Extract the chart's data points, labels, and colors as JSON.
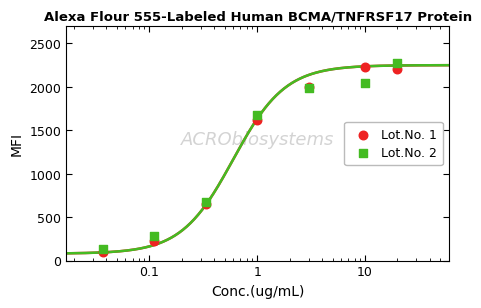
{
  "title": "Alexa Flour 555-Labeled Human BCMA/TNFRSF17 Protein",
  "xlabel": "Conc.(ug/mL)",
  "ylabel": "MFI",
  "xlim": [
    0.017,
    60
  ],
  "ylim": [
    0,
    2700
  ],
  "yticks": [
    0,
    500,
    1000,
    1500,
    2000,
    2500
  ],
  "lot1_x": [
    0.037,
    0.111,
    0.333,
    1.0,
    3.0,
    10.0,
    20.0
  ],
  "lot1_y": [
    100,
    230,
    650,
    1620,
    2000,
    2230,
    2200
  ],
  "lot1_color": "#ee2222",
  "lot1_label": "Lot.No. 1",
  "lot2_x": [
    0.037,
    0.111,
    0.333,
    1.0,
    3.0,
    10.0,
    20.0
  ],
  "lot2_y": [
    130,
    280,
    670,
    1680,
    1990,
    2050,
    2270
  ],
  "lot2_color": "#44bb22",
  "lot2_label": "Lot.No. 2",
  "curve_color_1": "#ee2222",
  "curve_color_2": "#44bb22",
  "background_color": "#ffffff",
  "watermark_text": "ACRObiosystems",
  "title_fontsize": 9.5,
  "axis_label_fontsize": 10,
  "tick_fontsize": 9,
  "legend_fontsize": 9
}
